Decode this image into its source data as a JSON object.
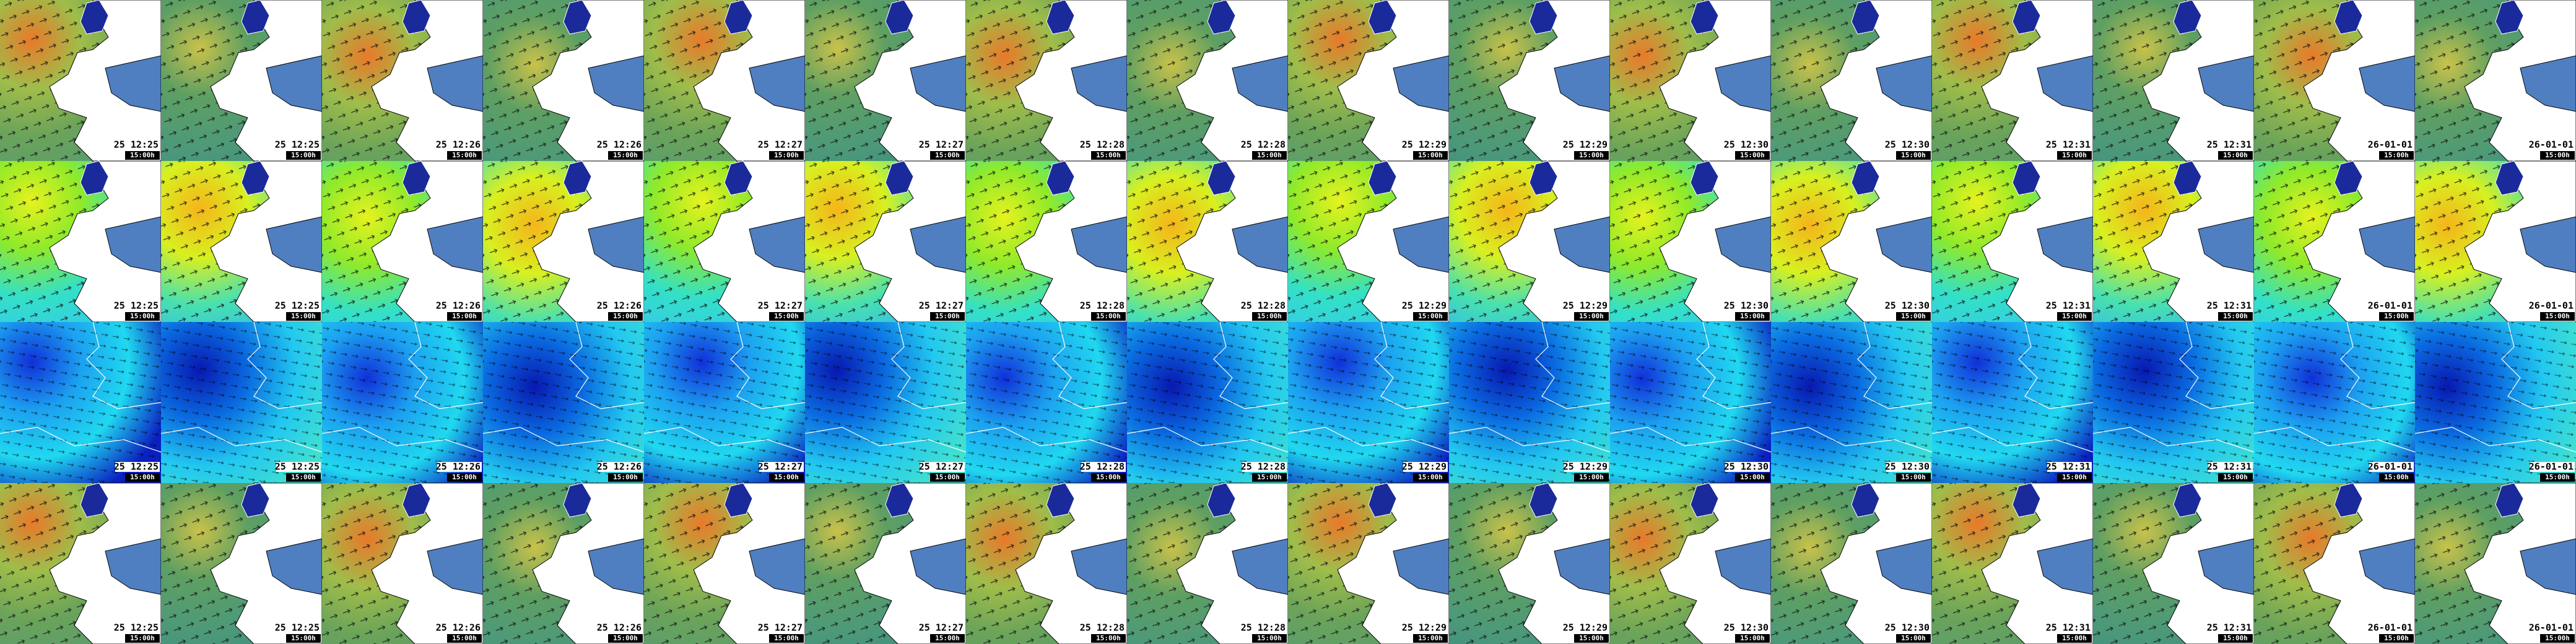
{
  "rows": [
    {
      "tiles": [
        {
          "date": "25 12:25",
          "time": "15:00h"
        },
        {
          "date": "25 12:25",
          "time": "15:00h"
        },
        {
          "date": "25 12:26",
          "time": "15:00h"
        },
        {
          "date": "25 12:26",
          "time": "15:00h"
        },
        {
          "date": "25 12:27",
          "time": "15:00h"
        },
        {
          "date": "25 12:27",
          "time": "15:00h"
        },
        {
          "date": "25 12:28",
          "time": "15:00h"
        },
        {
          "date": "25 12:28",
          "time": "15:00h"
        },
        {
          "date": "25 12:29",
          "time": "15:00h"
        },
        {
          "date": "25 12:29",
          "time": "15:00h"
        },
        {
          "date": "25 12:30",
          "time": "15:00h"
        },
        {
          "date": "25 12:30",
          "time": "15:00h"
        },
        {
          "date": "25 12:31",
          "time": "15:00h"
        },
        {
          "date": "25 12:31",
          "time": "15:00h"
        },
        {
          "date": "26-01-01",
          "time": "15:00h"
        },
        {
          "date": "26-01-01",
          "time": "15:00h"
        }
      ]
    },
    {
      "tiles": [
        {
          "date": "25 12:25",
          "time": "15:00h"
        },
        {
          "date": "25 12:25",
          "time": "15:00h"
        },
        {
          "date": "25 12:26",
          "time": "15:00h"
        },
        {
          "date": "25 12:26",
          "time": "15:00h"
        },
        {
          "date": "25 12:27",
          "time": "15:00h"
        },
        {
          "date": "25 12:27",
          "time": "15:00h"
        },
        {
          "date": "25 12:28",
          "time": "15:00h"
        },
        {
          "date": "25 12:28",
          "time": "15:00h"
        },
        {
          "date": "25 12:29",
          "time": "15:00h"
        },
        {
          "date": "25 12:29",
          "time": "15:00h"
        },
        {
          "date": "25 12:30",
          "time": "15:00h"
        },
        {
          "date": "25 12:30",
          "time": "15:00h"
        },
        {
          "date": "25 12:31",
          "time": "15:00h"
        },
        {
          "date": "25 12:31",
          "time": "15:00h"
        },
        {
          "date": "26-01-01",
          "time": "15:00h"
        },
        {
          "date": "26-01-01",
          "time": "15:00h"
        }
      ]
    },
    {
      "tiles": [
        {
          "date": "25 12:25",
          "time": "15:00h"
        },
        {
          "date": "25 12:25",
          "time": "15:00h"
        },
        {
          "date": "25 12:26",
          "time": "15:00h"
        },
        {
          "date": "25 12:26",
          "time": "15:00h"
        },
        {
          "date": "25 12:27",
          "time": "15:00h"
        },
        {
          "date": "25 12:27",
          "time": "15:00h"
        },
        {
          "date": "25 12:28",
          "time": "15:00h"
        },
        {
          "date": "25 12:28",
          "time": "15:00h"
        },
        {
          "date": "25 12:29",
          "time": "15:00h"
        },
        {
          "date": "25 12:29",
          "time": "15:00h"
        },
        {
          "date": "25 12:30",
          "time": "15:00h"
        },
        {
          "date": "25 12:30",
          "time": "15:00h"
        },
        {
          "date": "25 12:31",
          "time": "15:00h"
        },
        {
          "date": "25 12:31",
          "time": "15:00h"
        },
        {
          "date": "26-01-01",
          "time": "15:00h"
        },
        {
          "date": "26-01-01",
          "time": "15:00h"
        }
      ]
    },
    {
      "tiles": [
        {
          "date": "25 12:25",
          "time": "15:00h"
        },
        {
          "date": "25 12:25",
          "time": "15:00h"
        },
        {
          "date": "25 12:26",
          "time": "15:00h"
        },
        {
          "date": "25 12:26",
          "time": "15:00h"
        },
        {
          "date": "25 12:27",
          "time": "15:00h"
        },
        {
          "date": "25 12:27",
          "time": "15:00h"
        },
        {
          "date": "25 12:28",
          "time": "15:00h"
        },
        {
          "date": "25 12:28",
          "time": "15:00h"
        },
        {
          "date": "25 12:29",
          "time": "15:00h"
        },
        {
          "date": "25 12:29",
          "time": "15:00h"
        },
        {
          "date": "25 12:30",
          "time": "15:00h"
        },
        {
          "date": "25 12:30",
          "time": "15:00h"
        },
        {
          "date": "25 12:31",
          "time": "15:00h"
        },
        {
          "date": "25 12:31",
          "time": "15:00h"
        },
        {
          "date": "26-01-01",
          "time": "15:00h"
        },
        {
          "date": "26-01-01",
          "time": "15:00h"
        }
      ]
    }
  ]
}
